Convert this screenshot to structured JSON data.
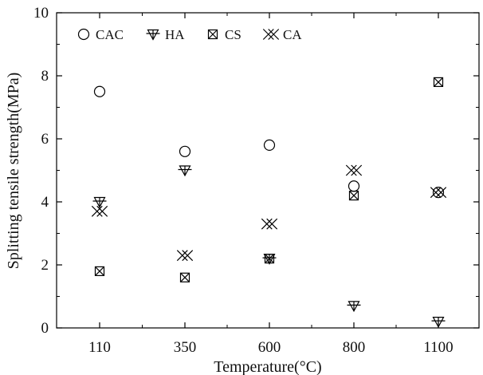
{
  "chart_data": {
    "type": "scatter",
    "xlabel": "Temperature(°C)",
    "ylabel": "Splitting tensile strength(MPa)",
    "categories": [
      "110",
      "350",
      "600",
      "800",
      "1100"
    ],
    "ylim": [
      0,
      10
    ],
    "yticks": [
      "0",
      "2",
      "4",
      "6",
      "8",
      "10"
    ],
    "grid": false,
    "legend": "top-left",
    "series": [
      {
        "name": "CAC",
        "marker": "circle",
        "values": [
          7.5,
          5.6,
          5.8,
          4.5,
          4.3
        ]
      },
      {
        "name": "HA",
        "marker": "triangle-down",
        "values": [
          4.0,
          5.0,
          2.2,
          0.7,
          0.2
        ]
      },
      {
        "name": "CS",
        "marker": "boxed-x",
        "values": [
          1.8,
          1.6,
          2.2,
          4.2,
          7.8
        ]
      },
      {
        "name": "CA",
        "marker": "double-x",
        "values": [
          3.7,
          2.3,
          3.3,
          5.0,
          4.3
        ]
      }
    ]
  }
}
